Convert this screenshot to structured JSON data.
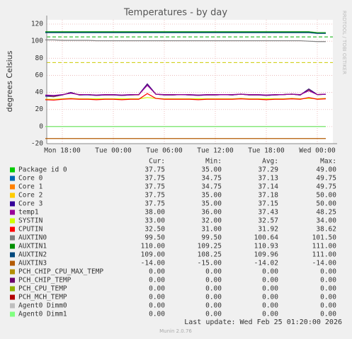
{
  "chart_data": {
    "type": "line",
    "title": "Temperatures - by day",
    "y_label": "degrees Celsius",
    "side_text": "RRDTOOL / TOBI OETIKER",
    "footer": "Last update: Wed Feb 25 01:20:00 2026",
    "version": "Munin 2.0.76",
    "stat_headers": [
      "Cur:",
      "Min:",
      "Avg:",
      "Max:"
    ],
    "categories": [
      null,
      null,
      "Mon 18:00",
      null,
      null,
      null,
      null,
      null,
      "Tue 00:00",
      null,
      null,
      null,
      null,
      null,
      "Tue 06:00",
      null,
      null,
      null,
      null,
      null,
      "Tue 12:00",
      null,
      null,
      null,
      null,
      null,
      "Tue 18:00",
      null,
      null,
      null,
      null,
      null,
      "Wed 00:00",
      null
    ],
    "ylim": [
      -20,
      125
    ],
    "yticks": [
      -20,
      0,
      20,
      40,
      60,
      80,
      100,
      120
    ],
    "grid": true,
    "threshold_lines": [
      {
        "value": 105,
        "color": "#00aa00"
      },
      {
        "value": 75,
        "color": "#cccc00"
      }
    ],
    "series": [
      {
        "name": "Package id 0",
        "color": "#00cc00",
        "stats": [
          "37.75",
          "35.00",
          "37.29",
          "49.00"
        ],
        "values": [
          36,
          35.5,
          37,
          40,
          37,
          37.5,
          36.5,
          37,
          37.5,
          36.5,
          37,
          37.5,
          49,
          38,
          37,
          37.5,
          37.5,
          37,
          37,
          37,
          37.5,
          37.5,
          37,
          38,
          37,
          37.5,
          36.5,
          37,
          37.5,
          38,
          37,
          44,
          37.5,
          37.75
        ]
      },
      {
        "name": "Core 0",
        "color": "#0066b3",
        "stats": [
          "37.75",
          "34.75",
          "37.13",
          "49.75"
        ],
        "values": [
          35.5,
          35,
          37,
          39.5,
          37,
          37,
          36.5,
          37,
          37,
          36.5,
          37,
          37.5,
          49.75,
          38,
          37,
          37,
          37.5,
          37,
          36.5,
          37,
          37,
          37.5,
          37,
          38,
          37,
          37,
          36.5,
          37,
          37.5,
          38,
          37,
          43,
          37.5,
          37.75
        ]
      },
      {
        "name": "Core 1",
        "color": "#ff8000",
        "stats": [
          "37.75",
          "34.75",
          "37.14",
          "49.75"
        ],
        "values": [
          36,
          35,
          37,
          40,
          37,
          37.5,
          36.5,
          37,
          37,
          36.5,
          37,
          37,
          49.75,
          38,
          37,
          37,
          37.5,
          37,
          36.5,
          37,
          37,
          37.5,
          37,
          38,
          37,
          37,
          36.5,
          37,
          37.5,
          38,
          37,
          43.5,
          37.5,
          37.75
        ]
      },
      {
        "name": "Core 2",
        "color": "#ffcc00",
        "stats": [
          "37.75",
          "35.00",
          "37.18",
          "50.00"
        ],
        "values": [
          36,
          35.5,
          37,
          40,
          37,
          37.5,
          36.5,
          37,
          37,
          36.5,
          37,
          37.5,
          50,
          38,
          37,
          37,
          37.5,
          37,
          36.5,
          37,
          37,
          37.5,
          37,
          38,
          37,
          37,
          36.5,
          37,
          37.5,
          38,
          37,
          44,
          37.5,
          37.75
        ]
      },
      {
        "name": "Core 3",
        "color": "#330099",
        "stats": [
          "37.75",
          "35.00",
          "37.15",
          "50.00"
        ],
        "values": [
          36,
          35.5,
          37,
          40,
          37,
          37.5,
          36.5,
          37,
          37,
          36.5,
          37,
          37.5,
          50,
          38,
          37,
          37,
          37.5,
          37,
          36.5,
          37,
          37,
          37.5,
          37,
          38,
          37,
          37,
          36.5,
          37,
          37.5,
          38,
          37,
          44,
          37.5,
          37.75
        ]
      },
      {
        "name": "temp1",
        "color": "#990099",
        "stats": [
          "38.00",
          "36.00",
          "37.43",
          "48.25"
        ],
        "values": [
          37,
          36.5,
          37.5,
          39,
          37.5,
          37.5,
          37,
          37.5,
          37.5,
          37,
          37.5,
          37.5,
          48.25,
          38,
          37.5,
          37.5,
          37.5,
          37.5,
          37,
          37.5,
          37.5,
          37.5,
          37.5,
          38,
          37.5,
          37.5,
          37,
          37.5,
          37.5,
          38,
          37.5,
          42,
          37.5,
          38
        ]
      },
      {
        "name": "SYSTIN",
        "color": "#ccff00",
        "stats": [
          "33.00",
          "32.00",
          "32.57",
          "34.00"
        ],
        "values": [
          32,
          32,
          32.5,
          33,
          32.5,
          32.5,
          32.5,
          32.5,
          32.5,
          32.5,
          32.5,
          32.5,
          34,
          33,
          32.5,
          32.5,
          32.5,
          32.5,
          32.5,
          32.5,
          32.5,
          32.5,
          32.5,
          33,
          32.5,
          32.5,
          32.5,
          32.5,
          32.5,
          33,
          32.5,
          33,
          32.5,
          33
        ]
      },
      {
        "name": "CPUTIN",
        "color": "#ff0000",
        "stats": [
          "32.50",
          "31.00",
          "31.92",
          "38.62"
        ],
        "values": [
          31.5,
          31,
          32,
          32.5,
          32,
          32,
          31.5,
          32,
          32,
          31.5,
          32,
          32,
          38.62,
          33,
          32,
          32,
          32,
          32,
          31.5,
          32,
          32,
          32,
          32,
          32.5,
          32,
          32,
          31.5,
          32,
          32,
          32.5,
          32,
          34,
          32,
          32.5
        ]
      },
      {
        "name": "AUXTIN0",
        "color": "#808080",
        "stats": [
          "99.50",
          "99.50",
          "100.64",
          "101.50"
        ],
        "values": [
          101.5,
          101.5,
          101,
          101,
          101,
          101,
          100.5,
          100.5,
          100.5,
          100.5,
          100.5,
          100.5,
          100.5,
          100.5,
          100.5,
          100.5,
          100.5,
          100.5,
          100.5,
          100.5,
          100.5,
          100.5,
          100.5,
          100.5,
          100.5,
          100.5,
          100.5,
          100.5,
          100.5,
          100.5,
          100.5,
          100,
          99.5,
          99.5
        ]
      },
      {
        "name": "AUXTIN1",
        "color": "#008f00",
        "stats": [
          "110.00",
          "109.25",
          "110.93",
          "111.00"
        ],
        "values": [
          111,
          111,
          111,
          111,
          111,
          111,
          111,
          111,
          111,
          111,
          111,
          111,
          111,
          111,
          111,
          111,
          111,
          111,
          111,
          111,
          111,
          111,
          111,
          111,
          111,
          111,
          111,
          111,
          111,
          111,
          111,
          111,
          110,
          110
        ]
      },
      {
        "name": "AUXTIN2",
        "color": "#00487d",
        "stats": [
          "109.00",
          "108.25",
          "109.96",
          "111.00"
        ],
        "values": [
          110,
          110,
          110,
          110,
          110,
          110,
          110,
          110,
          110,
          110,
          110,
          110,
          110,
          110,
          110,
          110,
          110,
          110,
          110,
          110,
          110,
          110,
          110,
          110,
          110,
          110,
          110,
          110,
          110,
          110,
          110,
          110,
          109,
          109
        ]
      },
      {
        "name": "AUXTIN3",
        "color": "#b35a00",
        "stats": [
          "-14.00",
          "-15.00",
          "-14.02",
          "-14.00"
        ],
        "values": [
          -14,
          -14,
          -14,
          -14,
          -14,
          -14,
          -14,
          -14,
          -14,
          -14,
          -14,
          -14,
          -14,
          -14,
          -14,
          -14,
          -14,
          -14,
          -14,
          -14,
          -14,
          -14,
          -14,
          -14,
          -14,
          -14,
          -14,
          -14,
          -14,
          -14,
          -14,
          -14,
          -14,
          -14
        ]
      },
      {
        "name": "PCH_CHIP_CPU_MAX_TEMP",
        "color": "#b38f00",
        "stats": [
          "0.00",
          "0.00",
          "0.00",
          "0.00"
        ],
        "values": [
          0,
          0,
          0,
          0,
          0,
          0,
          0,
          0,
          0,
          0,
          0,
          0,
          0,
          0,
          0,
          0,
          0,
          0,
          0,
          0,
          0,
          0,
          0,
          0,
          0,
          0,
          0,
          0,
          0,
          0,
          0,
          0,
          0,
          0
        ]
      },
      {
        "name": "PCH_CHIP_TEMP",
        "color": "#6b006b",
        "stats": [
          "0.00",
          "0.00",
          "0.00",
          "0.00"
        ],
        "values": [
          0,
          0,
          0,
          0,
          0,
          0,
          0,
          0,
          0,
          0,
          0,
          0,
          0,
          0,
          0,
          0,
          0,
          0,
          0,
          0,
          0,
          0,
          0,
          0,
          0,
          0,
          0,
          0,
          0,
          0,
          0,
          0,
          0,
          0
        ]
      },
      {
        "name": "PCH_CPU_TEMP",
        "color": "#8fb300",
        "stats": [
          "0.00",
          "0.00",
          "0.00",
          "0.00"
        ],
        "values": [
          0,
          0,
          0,
          0,
          0,
          0,
          0,
          0,
          0,
          0,
          0,
          0,
          0,
          0,
          0,
          0,
          0,
          0,
          0,
          0,
          0,
          0,
          0,
          0,
          0,
          0,
          0,
          0,
          0,
          0,
          0,
          0,
          0,
          0
        ]
      },
      {
        "name": "PCH_MCH_TEMP",
        "color": "#b30000",
        "stats": [
          "0.00",
          "0.00",
          "0.00",
          "0.00"
        ],
        "values": [
          0,
          0,
          0,
          0,
          0,
          0,
          0,
          0,
          0,
          0,
          0,
          0,
          0,
          0,
          0,
          0,
          0,
          0,
          0,
          0,
          0,
          0,
          0,
          0,
          0,
          0,
          0,
          0,
          0,
          0,
          0,
          0,
          0,
          0
        ]
      },
      {
        "name": "Agent0 Dimm0",
        "color": "#bebebe",
        "stats": [
          "0.00",
          "0.00",
          "0.00",
          "0.00"
        ],
        "values": [
          0,
          0,
          0,
          0,
          0,
          0,
          0,
          0,
          0,
          0,
          0,
          0,
          0,
          0,
          0,
          0,
          0,
          0,
          0,
          0,
          0,
          0,
          0,
          0,
          0,
          0,
          0,
          0,
          0,
          0,
          0,
          0,
          0,
          0
        ]
      },
      {
        "name": "Agent0 Dimm1",
        "color": "#80ff80",
        "stats": [
          "0.00",
          "0.00",
          "0.00",
          "0.00"
        ],
        "values": [
          0,
          0,
          0,
          0,
          0,
          0,
          0,
          0,
          0,
          0,
          0,
          0,
          0,
          0,
          0,
          0,
          0,
          0,
          0,
          0,
          0,
          0,
          0,
          0,
          0,
          0,
          0,
          0,
          0,
          0,
          0,
          0,
          0,
          0
        ]
      }
    ]
  }
}
